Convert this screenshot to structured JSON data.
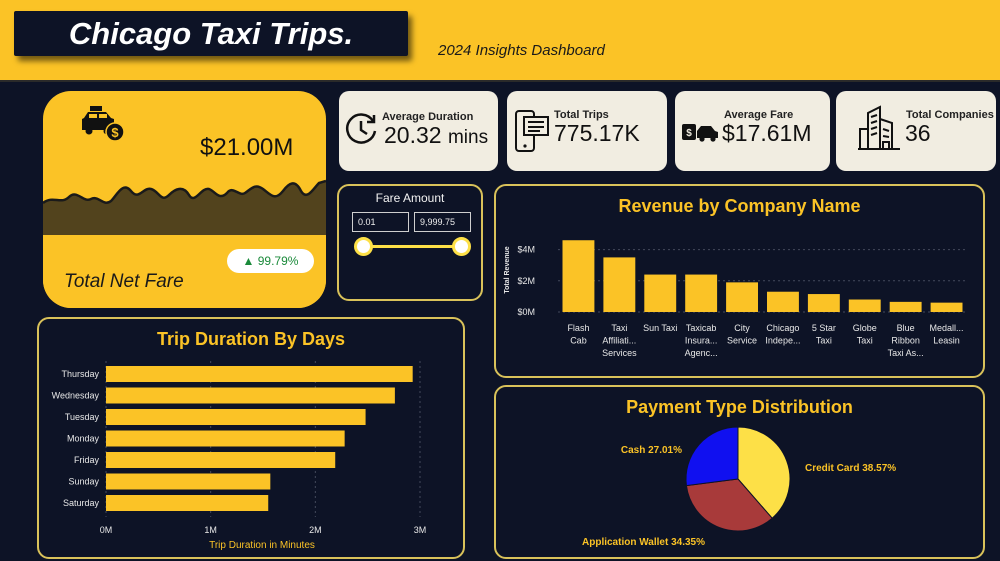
{
  "header": {
    "title": "Chicago Taxi Trips.",
    "subtitle": "2024 Insights Dashboard"
  },
  "net_fare": {
    "value": "$21.00M",
    "label": "Total Net Fare",
    "change": "▲ 99.79%",
    "icon": "taxi-dollar-icon"
  },
  "kpis": [
    {
      "label": "Average Duration",
      "value": "20.32",
      "unit": "mins",
      "icon": "clock-icon"
    },
    {
      "label": "Total Trips",
      "value": "775.17K",
      "icon": "receipt-phone-icon"
    },
    {
      "label": "Average Fare",
      "value": "$17.61M",
      "icon": "cash-car-icon"
    },
    {
      "label": "Total Companies",
      "value": "36",
      "icon": "buildings-icon"
    }
  ],
  "fare_amount": {
    "title": "Fare Amount",
    "min": "0.01",
    "max": "9,999.75"
  },
  "colors": {
    "accent": "#fbc326",
    "background": "#0d1326",
    "card": "#f1ede1",
    "border": "#d9c25a"
  },
  "chart_data": [
    {
      "type": "bar",
      "orientation": "vertical",
      "title": "Revenue by Company Name",
      "ylabel": "Total Revenue",
      "xlabel": "",
      "categories": [
        [
          "Flash",
          "Cab"
        ],
        [
          "Taxi",
          "Affiliati...",
          "Services"
        ],
        [
          "Sun Taxi"
        ],
        [
          "Taxicab",
          "Insura...",
          "Agenc..."
        ],
        [
          "City",
          "Service"
        ],
        [
          "Chicago",
          "Indepe..."
        ],
        [
          "5 Star",
          "Taxi"
        ],
        [
          "Globe",
          "Taxi"
        ],
        [
          "Blue",
          "Ribbon",
          "Taxi As..."
        ],
        [
          "Medall...",
          "Leasin"
        ]
      ],
      "values": [
        4.6,
        3.5,
        2.4,
        2.4,
        1.9,
        1.3,
        1.15,
        0.8,
        0.65,
        0.6
      ],
      "value_unit": "M",
      "yticks": [
        "$0M",
        "$2M",
        "$4M"
      ],
      "ylim": [
        0,
        5
      ],
      "grid": true
    },
    {
      "type": "bar",
      "orientation": "horizontal",
      "title": "Trip Duration By Days",
      "xlabel": "Trip Duration in Minutes",
      "ylabel": "",
      "categories": [
        "Thursday",
        "Wednesday",
        "Tuesday",
        "Monday",
        "Friday",
        "Sunday",
        "Saturday"
      ],
      "values": [
        2.93,
        2.76,
        2.48,
        2.28,
        2.19,
        1.57,
        1.55
      ],
      "value_unit": "M",
      "xticks": [
        "0M",
        "1M",
        "2M",
        "3M"
      ],
      "xlim": [
        0,
        3
      ],
      "grid": true
    },
    {
      "type": "pie",
      "title": "Payment Type Distribution",
      "slices": [
        {
          "label": "Credit Card 38.57%",
          "value": 38.57,
          "color": "#fde047"
        },
        {
          "label": "Application Wallet 34.35%",
          "value": 34.35,
          "color": "#a83a3a"
        },
        {
          "label": "Cash 27.01%",
          "value": 27.01,
          "color": "#1010f0"
        }
      ]
    }
  ]
}
